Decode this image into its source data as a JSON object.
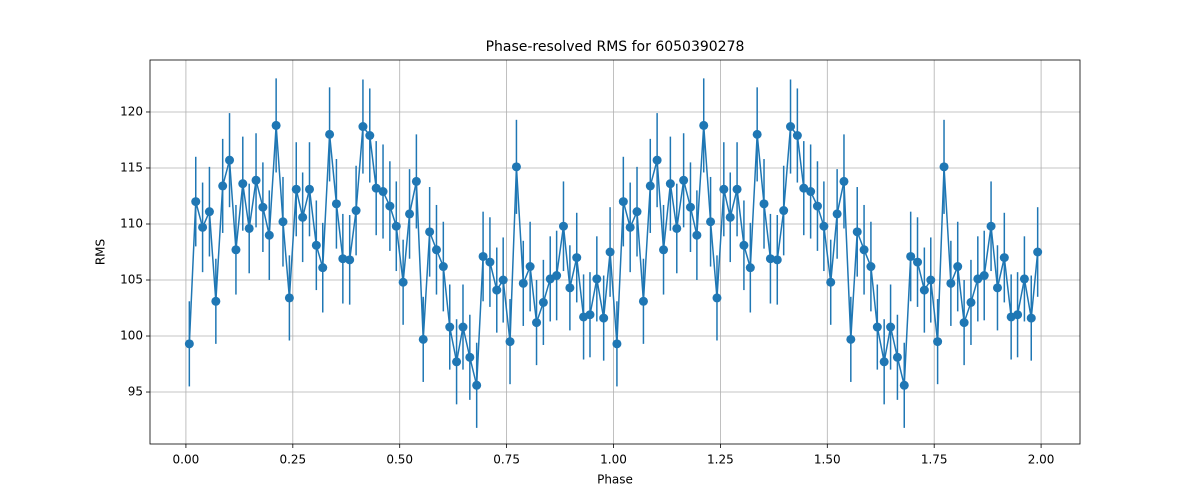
{
  "chart_data": {
    "type": "errorbar",
    "title": "Phase-resolved RMS for 6050390278",
    "x_label": "Phase",
    "y_label": "RMS",
    "color": "#1f77b4",
    "grid": true,
    "xlim": [
      -0.084,
      2.091
    ],
    "ylim": [
      90.36,
      124.64
    ],
    "xticks": [
      {
        "value": 0,
        "label": "0.00"
      },
      {
        "value": 0.25,
        "label": "0.25"
      },
      {
        "value": 0.5,
        "label": "0.50"
      },
      {
        "value": 0.75,
        "label": "0.75"
      },
      {
        "value": 1,
        "label": "1.00"
      },
      {
        "value": 1.25,
        "label": "1.25"
      },
      {
        "value": 1.5,
        "label": "1.50"
      },
      {
        "value": 1.75,
        "label": "1.75"
      },
      {
        "value": 2,
        "label": "2.00"
      }
    ],
    "yticks": [
      95,
      100,
      105,
      110,
      115,
      120
    ],
    "x": [
      0.008,
      0.023,
      0.039,
      0.055,
      0.07,
      0.086,
      0.102,
      0.117,
      0.133,
      0.148,
      0.164,
      0.18,
      0.195,
      0.211,
      0.227,
      0.242,
      0.258,
      0.273,
      0.289,
      0.305,
      0.32,
      0.336,
      0.352,
      0.367,
      0.383,
      0.398,
      0.414,
      0.43,
      0.445,
      0.461,
      0.477,
      0.492,
      0.508,
      0.523,
      0.539,
      0.555,
      0.57,
      0.586,
      0.602,
      0.617,
      0.633,
      0.648,
      0.664,
      0.68,
      0.695,
      0.711,
      0.727,
      0.742,
      0.758,
      0.773,
      0.789,
      0.805,
      0.82,
      0.836,
      0.852,
      0.867,
      0.883,
      0.898,
      0.914,
      0.93,
      0.945,
      0.961,
      0.977,
      0.992,
      1.008,
      1.023,
      1.039,
      1.055,
      1.07,
      1.086,
      1.102,
      1.117,
      1.133,
      1.148,
      1.164,
      1.18,
      1.195,
      1.211,
      1.227,
      1.242,
      1.258,
      1.273,
      1.289,
      1.305,
      1.32,
      1.336,
      1.352,
      1.367,
      1.383,
      1.398,
      1.414,
      1.43,
      1.445,
      1.461,
      1.477,
      1.492,
      1.508,
      1.523,
      1.539,
      1.555,
      1.57,
      1.586,
      1.602,
      1.617,
      1.633,
      1.648,
      1.664,
      1.68,
      1.695,
      1.711,
      1.727,
      1.742,
      1.758,
      1.773,
      1.789,
      1.805,
      1.82,
      1.836,
      1.852,
      1.867,
      1.883,
      1.898,
      1.914,
      1.93,
      1.945,
      1.961,
      1.977,
      1.992
    ],
    "values": [
      99.3,
      112.0,
      109.7,
      111.1,
      103.1,
      113.4,
      115.7,
      107.7,
      113.6,
      109.6,
      113.9,
      111.5,
      109.0,
      118.8,
      110.2,
      103.4,
      113.1,
      110.6,
      113.1,
      108.1,
      106.1,
      118.0,
      111.8,
      106.9,
      106.8,
      111.2,
      118.7,
      117.9,
      113.2,
      112.9,
      111.6,
      109.8,
      104.8,
      110.9,
      113.8,
      99.7,
      109.3,
      107.7,
      106.2,
      100.8,
      97.7,
      100.8,
      98.1,
      95.6,
      107.1,
      106.6,
      104.1,
      105.0,
      99.5,
      115.1,
      104.7,
      106.2,
      101.2,
      103.0,
      105.1,
      105.4,
      109.8,
      104.3,
      107.0,
      101.7,
      101.9,
      105.1,
      101.6,
      107.5,
      99.3,
      112.0,
      109.7,
      111.1,
      103.1,
      113.4,
      115.7,
      107.7,
      113.6,
      109.6,
      113.9,
      111.5,
      109.0,
      118.8,
      110.2,
      103.4,
      113.1,
      110.6,
      113.1,
      108.1,
      106.1,
      118.0,
      111.8,
      106.9,
      106.8,
      111.2,
      118.7,
      117.9,
      113.2,
      112.9,
      111.6,
      109.8,
      104.8,
      110.9,
      113.8,
      99.7,
      109.3,
      107.7,
      106.2,
      100.8,
      97.7,
      100.8,
      98.1,
      95.6,
      107.1,
      106.6,
      104.1,
      105.0,
      99.5,
      115.1,
      104.7,
      106.2,
      101.2,
      103.0,
      105.1,
      105.4,
      109.8,
      104.3,
      107.0,
      101.7,
      101.9,
      105.1,
      101.6,
      107.5
    ],
    "errors": [
      3.8,
      4.0,
      4.0,
      4.0,
      3.8,
      4.2,
      4.2,
      4.0,
      4.2,
      4.0,
      4.2,
      4.0,
      4.0,
      4.2,
      4.0,
      3.8,
      4.2,
      4.0,
      4.2,
      4.0,
      4.0,
      4.2,
      4.0,
      4.0,
      4.0,
      4.0,
      4.2,
      4.2,
      4.2,
      4.2,
      4.0,
      4.0,
      3.8,
      4.0,
      4.2,
      3.8,
      4.0,
      4.0,
      4.0,
      3.8,
      3.8,
      3.8,
      3.8,
      3.8,
      4.0,
      4.0,
      3.8,
      3.8,
      3.8,
      4.2,
      3.8,
      4.0,
      3.8,
      3.8,
      3.8,
      4.0,
      4.0,
      3.8,
      4.0,
      3.8,
      3.8,
      3.8,
      3.8,
      4.0,
      3.8,
      4.0,
      4.0,
      4.0,
      3.8,
      4.2,
      4.2,
      4.0,
      4.2,
      4.0,
      4.2,
      4.0,
      4.0,
      4.2,
      4.0,
      3.8,
      4.2,
      4.0,
      4.2,
      4.0,
      4.0,
      4.2,
      4.0,
      4.0,
      4.0,
      4.0,
      4.2,
      4.2,
      4.2,
      4.2,
      4.0,
      4.0,
      3.8,
      4.0,
      4.2,
      3.8,
      4.0,
      4.0,
      4.0,
      3.8,
      3.8,
      3.8,
      3.8,
      3.8,
      4.0,
      4.0,
      3.8,
      3.8,
      3.8,
      4.2,
      3.8,
      4.0,
      3.8,
      3.8,
      3.8,
      4.0,
      4.0,
      3.8,
      4.0,
      3.8,
      3.8,
      3.8,
      3.8,
      4.0
    ]
  }
}
